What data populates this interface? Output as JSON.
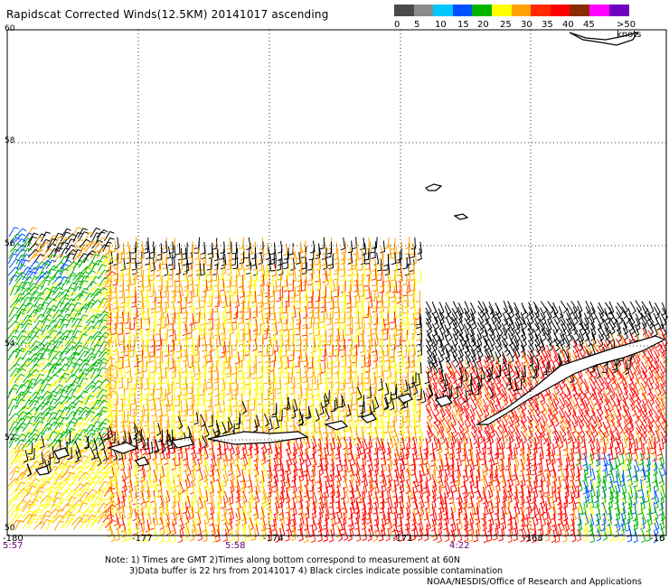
{
  "title": "Rapidscat Corrected Winds(12.5KM) 20141017 ascending",
  "colorbar": {
    "labels": [
      "0",
      "5",
      "10",
      "15",
      "20",
      "25",
      "30",
      "35",
      "40",
      "45",
      ">50 knots"
    ],
    "colors": [
      "#4a4a4a",
      "#8c8c8c",
      "#00c8ff",
      "#0050ff",
      "#00b400",
      "#ffff00",
      "#ffa000",
      "#ff2a00",
      "#ff0000",
      "#8b2a00",
      "#ff00ff",
      "#7000c0"
    ]
  },
  "map": {
    "lat_labels": [
      "60",
      "58",
      "56",
      "54",
      "52",
      "50"
    ],
    "lon_labels": [
      "-180",
      "-177",
      "-174",
      "-171",
      "-168",
      "-16"
    ],
    "time_labels": [
      "5:57",
      "5:58",
      "4:22"
    ],
    "wind_colors": {
      "calm": "#00c8ff",
      "light": "#0050ff",
      "moderate": "#00b400",
      "fresh": "#ffff00",
      "strong": "#ffa000",
      "gale": "#ff2a00",
      "storm": "#ff0000",
      "flagged": "#000000"
    },
    "land_color": "#000000"
  },
  "notes": [
    "Note: 1) Times are GMT 2)Times along bottom correspond to measurement at 60N",
    "3)Data buffer is 22 hrs from 20141017 4) Black circles indicate possible contamination"
  ],
  "credit": "NOAA/NESDIS/Office of Research and Applications"
}
